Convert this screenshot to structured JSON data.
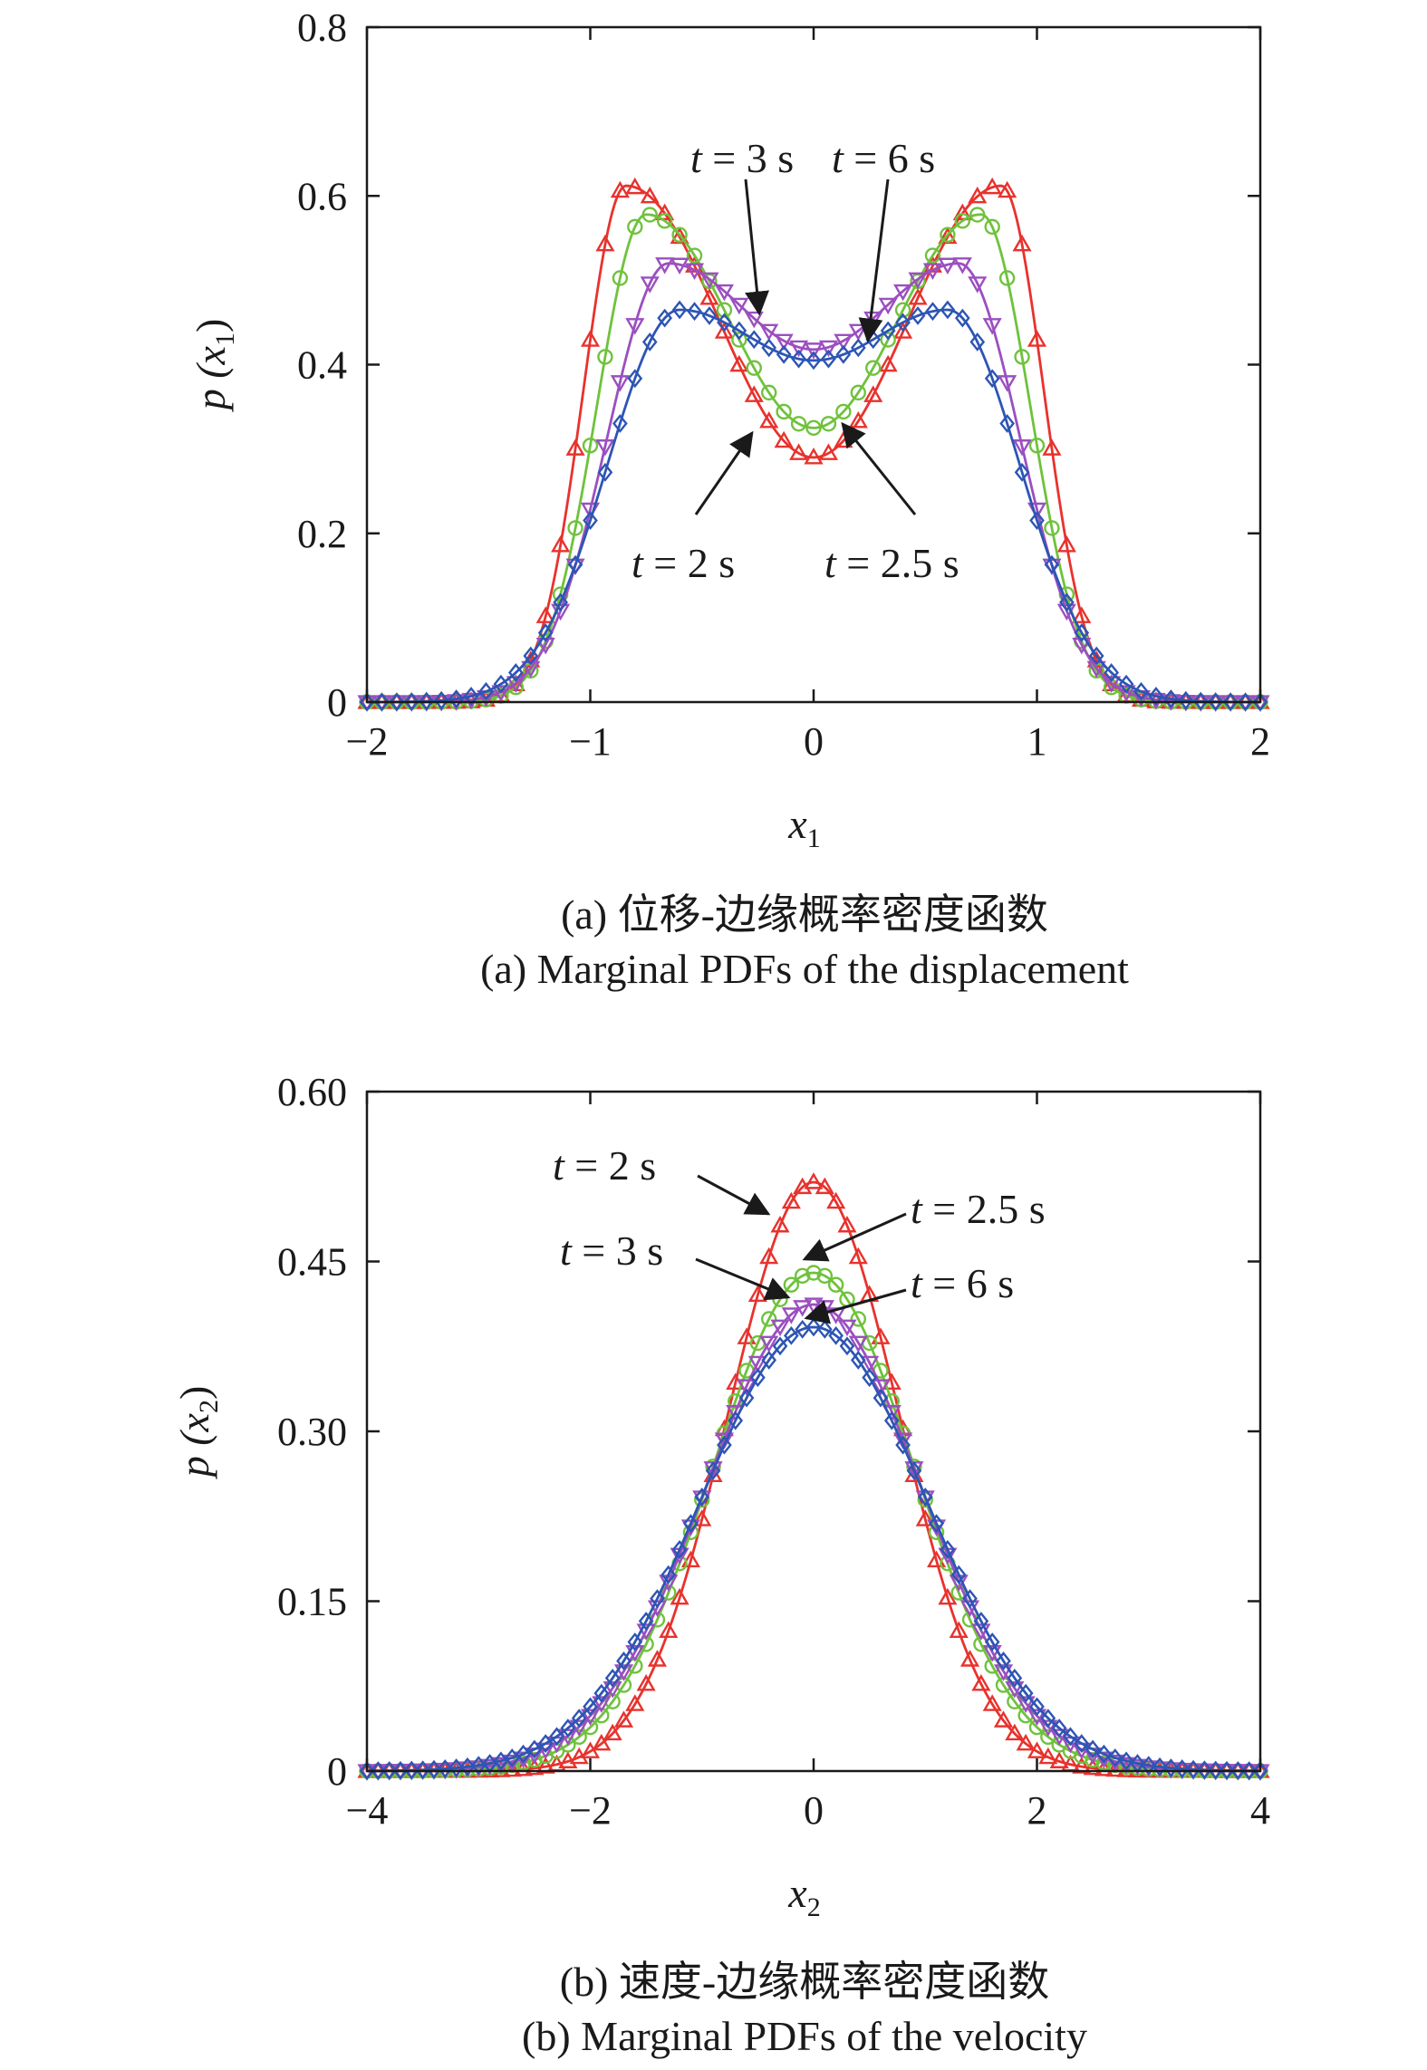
{
  "chart_data": [
    {
      "type": "line",
      "xlabel": "x",
      "xlabel_sub": "1",
      "ylabel": "p (x",
      "ylabel_sub": "1",
      "ylabel_close": ")",
      "xlim": [
        -2,
        2
      ],
      "ylim": [
        0,
        0.8
      ],
      "xticks": [
        -2,
        -1,
        0,
        1,
        2
      ],
      "xtick_labels": [
        "−2",
        "−1",
        "0",
        "1",
        "2"
      ],
      "yticks": [
        0,
        0.2,
        0.4,
        0.6,
        0.8
      ],
      "ytick_labels": [
        "0",
        "0.2",
        "0.4",
        "0.6",
        "0.8"
      ],
      "grid": false,
      "series": [
        {
          "color": "#e8322d",
          "marker": "triangle-up",
          "peak_x": 0.84,
          "peak_y": 0.612,
          "center_y": 0.29
        },
        {
          "color": "#6fc23c",
          "marker": "circle",
          "peak_x": 0.75,
          "peak_y": 0.578,
          "center_y": 0.325
        },
        {
          "color": "#9b4fc0",
          "marker": "triangle-down",
          "peak_x": 0.65,
          "peak_y": 0.52,
          "center_y": 0.418
        },
        {
          "color": "#2d55b4",
          "marker": "diamond",
          "peak_x": 0.6,
          "peak_y": 0.465,
          "center_y": 0.405
        }
      ],
      "annotations": [
        {
          "text": "t = 3 s"
        },
        {
          "text": "t = 6 s"
        },
        {
          "text": "t = 2 s"
        },
        {
          "text": "t = 2.5 s"
        }
      ],
      "caption_cn": "(a) 位移-边缘概率密度函数",
      "caption_en": "(a) Marginal PDFs of the displacement"
    },
    {
      "type": "line",
      "xlabel": "x",
      "xlabel_sub": "2",
      "ylabel": "p (x",
      "ylabel_sub": "2",
      "ylabel_close": ")",
      "xlim": [
        -4,
        4
      ],
      "ylim": [
        0,
        0.6
      ],
      "xticks": [
        -4,
        -2,
        0,
        2,
        4
      ],
      "xtick_labels": [
        "−4",
        "−2",
        "0",
        "2",
        "4"
      ],
      "yticks": [
        0,
        0.15,
        0.3,
        0.45,
        0.6
      ],
      "ytick_labels": [
        "0",
        "0.15",
        "0.30",
        "0.45",
        "0.60"
      ],
      "grid": false,
      "series": [
        {
          "color": "#e8322d",
          "marker": "triangle-up",
          "peak_y": 0.52,
          "sigma": 0.767
        },
        {
          "color": "#6fc23c",
          "marker": "circle",
          "peak_y": 0.44,
          "sigma": 0.907
        },
        {
          "color": "#9b4fc0",
          "marker": "triangle-down",
          "peak_y": 0.412,
          "sigma": 0.968
        },
        {
          "color": "#2d55b4",
          "marker": "diamond",
          "peak_y": 0.392,
          "sigma": 1.018
        }
      ],
      "annotations": [
        {
          "text": "t = 2 s"
        },
        {
          "text": "t = 2.5 s"
        },
        {
          "text": "t = 3 s"
        },
        {
          "text": "t = 6 s"
        }
      ],
      "caption_cn": "(b) 速度-边缘概率密度函数",
      "caption_en": "(b) Marginal PDFs of the velocity"
    }
  ]
}
